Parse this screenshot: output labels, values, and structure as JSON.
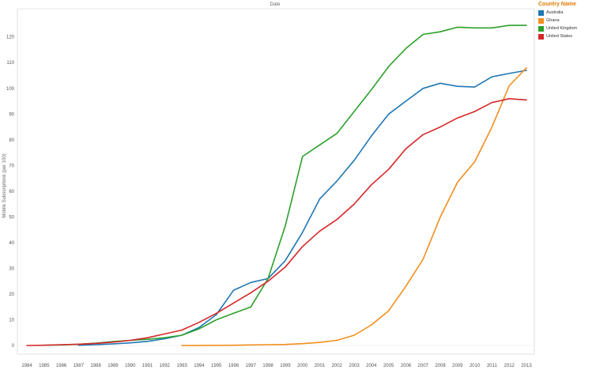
{
  "chart_data": {
    "type": "line",
    "title": "Date",
    "ylabel": "Mobile Subscriptions (per 100)",
    "xlabel": "",
    "x": [
      1984,
      1985,
      1986,
      1987,
      1988,
      1989,
      1990,
      1991,
      1992,
      1993,
      1994,
      1995,
      1996,
      1997,
      1998,
      1999,
      2000,
      2001,
      2002,
      2003,
      2004,
      2005,
      2006,
      2007,
      2008,
      2009,
      2010,
      2011,
      2012,
      2013
    ],
    "ylim": [
      0,
      130
    ],
    "yticks": [
      0,
      10,
      20,
      30,
      40,
      50,
      60,
      70,
      80,
      90,
      100,
      110,
      120
    ],
    "grid": false,
    "legend": {
      "title": "Country Name",
      "placement": "right"
    },
    "series": [
      {
        "name": "Australia",
        "color": "#1f77b4",
        "x": [
          1987,
          1988,
          1989,
          1990,
          1991,
          1992,
          1993,
          1994,
          1995,
          1996,
          1997,
          1998,
          1999,
          2000,
          2001,
          2002,
          2003,
          2004,
          2005,
          2006,
          2007,
          2008,
          2009,
          2010,
          2011,
          2012,
          2013
        ],
        "values": [
          0.1,
          0.3,
          0.6,
          1.0,
          1.6,
          2.6,
          4.0,
          7.0,
          12.0,
          21.5,
          24.5,
          26.0,
          33.0,
          44.0,
          57.0,
          64.0,
          72.0,
          81.5,
          90.0,
          95.0,
          100.0,
          102.0,
          100.8,
          100.5,
          104.5,
          105.8,
          107.0
        ]
      },
      {
        "name": "Ghana",
        "color": "#f28e1c",
        "x": [
          1993,
          1994,
          1995,
          1996,
          1997,
          1998,
          1999,
          2000,
          2001,
          2002,
          2003,
          2004,
          2005,
          2006,
          2007,
          2008,
          2009,
          2010,
          2011,
          2012,
          2013
        ],
        "values": [
          0.0,
          0.02,
          0.05,
          0.1,
          0.2,
          0.3,
          0.4,
          0.7,
          1.2,
          2.0,
          4.0,
          8.0,
          13.5,
          23.0,
          33.5,
          50.0,
          63.5,
          71.5,
          85.0,
          101.0,
          108.0
        ]
      },
      {
        "name": "United Kingdom",
        "color": "#2ca02c",
        "x": [
          1985,
          1986,
          1987,
          1988,
          1989,
          1990,
          1991,
          1992,
          1993,
          1994,
          1995,
          1996,
          1997,
          1998,
          1999,
          2000,
          2001,
          2002,
          2003,
          2004,
          2005,
          2006,
          2007,
          2008,
          2009,
          2010,
          2011,
          2012,
          2013
        ],
        "values": [
          0.1,
          0.2,
          0.5,
          0.9,
          1.5,
          2.0,
          2.4,
          3.0,
          4.0,
          6.5,
          10.0,
          12.5,
          15.0,
          26.0,
          46.5,
          73.5,
          78.0,
          82.5,
          91.0,
          99.5,
          108.5,
          115.5,
          121.0,
          122.0,
          123.8,
          123.5,
          123.5,
          124.5,
          124.5
        ]
      },
      {
        "name": "United States",
        "color": "#d62728",
        "x": [
          1984,
          1985,
          1986,
          1987,
          1988,
          1989,
          1990,
          1991,
          1992,
          1993,
          1994,
          1995,
          1996,
          1997,
          1998,
          1999,
          2000,
          2001,
          2002,
          2003,
          2004,
          2005,
          2006,
          2007,
          2008,
          2009,
          2010,
          2011,
          2012,
          2013
        ],
        "values": [
          0.0,
          0.1,
          0.3,
          0.5,
          0.8,
          1.3,
          2.0,
          3.0,
          4.5,
          6.0,
          9.0,
          12.5,
          16.5,
          20.5,
          25.0,
          30.5,
          38.5,
          44.5,
          49.0,
          55.0,
          62.5,
          68.5,
          76.5,
          82.0,
          85.0,
          88.5,
          91.0,
          94.5,
          96.0,
          95.5
        ]
      }
    ]
  }
}
